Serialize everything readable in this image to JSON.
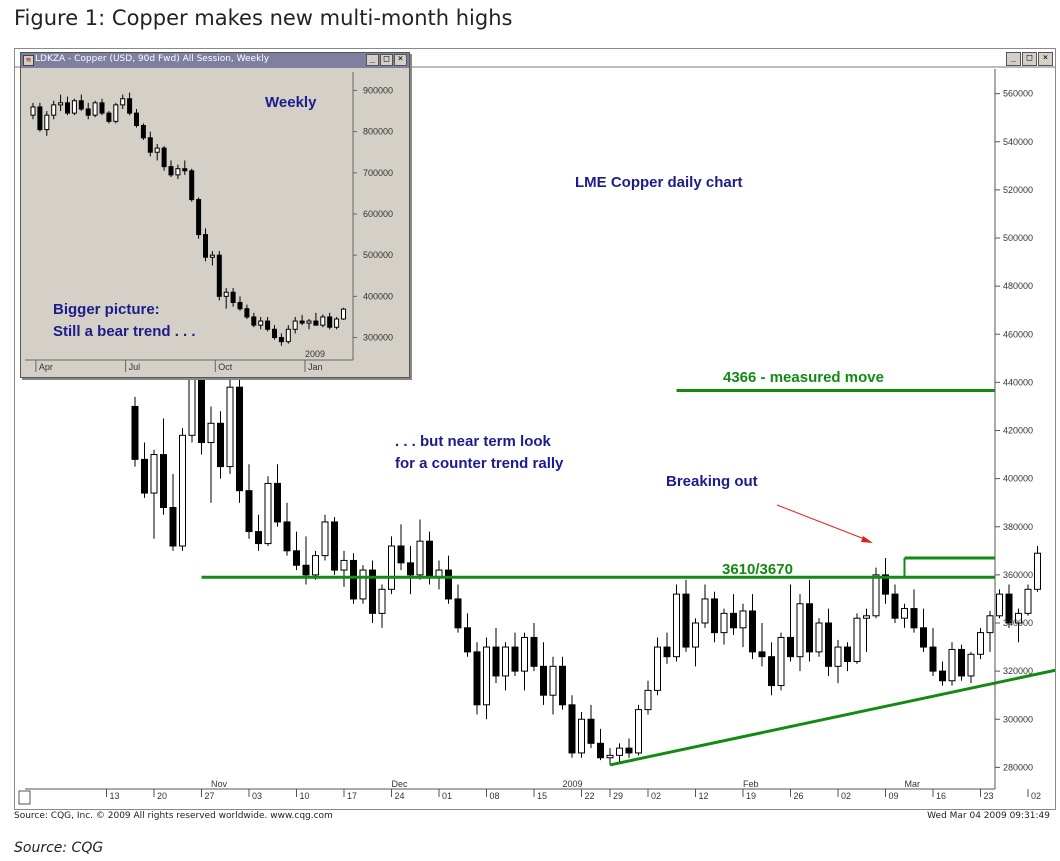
{
  "figure_title": "Figure 1: Copper makes new multi-month highs",
  "inset_window": {
    "title": "LDKZA - Copper (USD, 90d Fwd) All Session, Weekly",
    "buttons": [
      "_",
      "□",
      "×"
    ]
  },
  "main_window": {
    "buttons": [
      "_",
      "□",
      "×"
    ]
  },
  "annotations": {
    "main_title": "LME Copper daily chart",
    "near_term": [
      ". . . but near term look",
      "for a counter trend rally"
    ],
    "breaking_out": "Breaking out",
    "measured_move": "4366 - measured move",
    "resistance": "3610/3670",
    "weekly": "Weekly",
    "bigger_picture": [
      "Bigger picture:",
      "Still a bear trend . . ."
    ]
  },
  "colors": {
    "green": "#138a13",
    "annotation_blue": "#1c1c8a",
    "arrow_red": "#e02020",
    "candle_up": "#ffffff",
    "candle_down": "#000000"
  },
  "footer": {
    "left": "Source: CQG, Inc. © 2009 All rights reserved worldwide. www.cqg.com",
    "right": "Wed Mar 04 2009 09:31:49"
  },
  "source_note": "Source: CQG",
  "chart_data": [
    {
      "type": "candlestick",
      "name": "LME Copper daily chart",
      "y_ticks": [
        "560000",
        "540000",
        "520000",
        "500000",
        "480000",
        "460000",
        "440000",
        "420000",
        "400000",
        "380000",
        "360000",
        "340000",
        "320000",
        "300000",
        "280000"
      ],
      "ylim": [
        2760,
        5640
      ],
      "x_month_labels": [
        {
          "label": "Nov",
          "day_index": 8
        },
        {
          "label": "Dec",
          "day_index": 27
        },
        {
          "label": "2009",
          "day_index": 45
        },
        {
          "label": "Feb",
          "day_index": 64
        },
        {
          "label": "Mar",
          "day_index": 81
        }
      ],
      "x_day_labels": [
        {
          "label": "13",
          "day_index": -3
        },
        {
          "label": "20",
          "day_index": 2
        },
        {
          "label": "27",
          "day_index": 7
        },
        {
          "label": "03",
          "day_index": 12
        },
        {
          "label": "10",
          "day_index": 17
        },
        {
          "label": "17",
          "day_index": 22
        },
        {
          "label": "24",
          "day_index": 27
        },
        {
          "label": "01",
          "day_index": 32
        },
        {
          "label": "08",
          "day_index": 37
        },
        {
          "label": "15",
          "day_index": 42
        },
        {
          "label": "22",
          "day_index": 47
        },
        {
          "label": "29",
          "day_index": 50
        },
        {
          "label": "02",
          "day_index": 54
        },
        {
          "label": "12",
          "day_index": 59
        },
        {
          "label": "19",
          "day_index": 64
        },
        {
          "label": "26",
          "day_index": 69
        },
        {
          "label": "02",
          "day_index": 74
        },
        {
          "label": "09",
          "day_index": 79
        },
        {
          "label": "16",
          "day_index": 84
        },
        {
          "label": "23",
          "day_index": 89
        },
        {
          "label": "02",
          "day_index": 94
        }
      ],
      "ohlc": [
        [
          4300,
          4340,
          4050,
          4080
        ],
        [
          4080,
          4150,
          3920,
          3940
        ],
        [
          3940,
          4120,
          3750,
          4100
        ],
        [
          4100,
          4250,
          3850,
          3880
        ],
        [
          3880,
          4020,
          3700,
          3720
        ],
        [
          3720,
          4210,
          3700,
          4180
        ],
        [
          4180,
          4480,
          4150,
          4420
        ],
        [
          4420,
          4500,
          4100,
          4150
        ],
        [
          4150,
          4300,
          3900,
          4230
        ],
        [
          4230,
          4280,
          4000,
          4050
        ],
        [
          4050,
          4420,
          4020,
          4380
        ],
        [
          4380,
          4420,
          3900,
          3950
        ],
        [
          3950,
          4060,
          3750,
          3780
        ],
        [
          3780,
          3850,
          3700,
          3730
        ],
        [
          3730,
          4010,
          3720,
          3980
        ],
        [
          3980,
          4060,
          3800,
          3820
        ],
        [
          3820,
          3900,
          3680,
          3700
        ],
        [
          3700,
          3780,
          3620,
          3640
        ],
        [
          3640,
          3760,
          3560,
          3600
        ],
        [
          3600,
          3700,
          3580,
          3680
        ],
        [
          3680,
          3850,
          3660,
          3820
        ],
        [
          3820,
          3840,
          3600,
          3620
        ],
        [
          3620,
          3700,
          3550,
          3660
        ],
        [
          3660,
          3690,
          3480,
          3500
        ],
        [
          3500,
          3640,
          3480,
          3620
        ],
        [
          3620,
          3660,
          3400,
          3440
        ],
        [
          3440,
          3560,
          3380,
          3540
        ],
        [
          3540,
          3760,
          3520,
          3720
        ],
        [
          3720,
          3810,
          3620,
          3650
        ],
        [
          3650,
          3720,
          3520,
          3600
        ],
        [
          3600,
          3830,
          3580,
          3740
        ],
        [
          3740,
          3780,
          3560,
          3590
        ],
        [
          3590,
          3660,
          3540,
          3620
        ],
        [
          3620,
          3680,
          3480,
          3500
        ],
        [
          3500,
          3560,
          3360,
          3380
        ],
        [
          3380,
          3440,
          3260,
          3280
        ],
        [
          3280,
          3320,
          3020,
          3060
        ],
        [
          3060,
          3340,
          3000,
          3300
        ],
        [
          3300,
          3380,
          3150,
          3180
        ],
        [
          3180,
          3320,
          3120,
          3300
        ],
        [
          3300,
          3360,
          3180,
          3200
        ],
        [
          3200,
          3360,
          3120,
          3340
        ],
        [
          3340,
          3400,
          3200,
          3220
        ],
        [
          3220,
          3320,
          3060,
          3100
        ],
        [
          3100,
          3260,
          3020,
          3220
        ],
        [
          3220,
          3260,
          3040,
          3060
        ],
        [
          3060,
          3100,
          2840,
          2860
        ],
        [
          2860,
          3030,
          2840,
          3000
        ],
        [
          3000,
          3060,
          2880,
          2900
        ],
        [
          2900,
          2960,
          2830,
          2840
        ],
        [
          2840,
          2880,
          2810,
          2850
        ],
        [
          2850,
          2900,
          2820,
          2880
        ],
        [
          2880,
          2920,
          2840,
          2860
        ],
        [
          2860,
          3060,
          2850,
          3040
        ],
        [
          3040,
          3160,
          3020,
          3120
        ],
        [
          3120,
          3340,
          3100,
          3300
        ],
        [
          3300,
          3360,
          3230,
          3260
        ],
        [
          3260,
          3560,
          3240,
          3520
        ],
        [
          3520,
          3580,
          3280,
          3300
        ],
        [
          3300,
          3420,
          3220,
          3400
        ],
        [
          3400,
          3560,
          3380,
          3500
        ],
        [
          3500,
          3530,
          3320,
          3360
        ],
        [
          3360,
          3460,
          3310,
          3440
        ],
        [
          3440,
          3520,
          3350,
          3380
        ],
        [
          3380,
          3480,
          3300,
          3450
        ],
        [
          3450,
          3520,
          3250,
          3280
        ],
        [
          3280,
          3400,
          3220,
          3260
        ],
        [
          3260,
          3320,
          3100,
          3140
        ],
        [
          3140,
          3360,
          3120,
          3340
        ],
        [
          3340,
          3560,
          3240,
          3260
        ],
        [
          3260,
          3520,
          3200,
          3480
        ],
        [
          3480,
          3580,
          3240,
          3280
        ],
        [
          3280,
          3420,
          3260,
          3400
        ],
        [
          3400,
          3460,
          3180,
          3220
        ],
        [
          3220,
          3330,
          3150,
          3300
        ],
        [
          3300,
          3320,
          3200,
          3240
        ],
        [
          3240,
          3440,
          3230,
          3420
        ],
        [
          3420,
          3460,
          3280,
          3430
        ],
        [
          3430,
          3630,
          3420,
          3600
        ],
        [
          3600,
          3670,
          3480,
          3520
        ],
        [
          3520,
          3560,
          3400,
          3420
        ],
        [
          3420,
          3480,
          3380,
          3460
        ],
        [
          3460,
          3540,
          3360,
          3380
        ],
        [
          3380,
          3460,
          3280,
          3300
        ],
        [
          3300,
          3380,
          3180,
          3200
        ],
        [
          3200,
          3240,
          3140,
          3160
        ],
        [
          3160,
          3320,
          3140,
          3290
        ],
        [
          3290,
          3310,
          3160,
          3180
        ],
        [
          3180,
          3280,
          3150,
          3270
        ],
        [
          3270,
          3380,
          3250,
          3360
        ],
        [
          3360,
          3450,
          3280,
          3430
        ],
        [
          3430,
          3540,
          3420,
          3520
        ],
        [
          3520,
          3560,
          3380,
          3400
        ],
        [
          3400,
          3460,
          3320,
          3440
        ],
        [
          3440,
          3560,
          3430,
          3540
        ],
        [
          3540,
          3720,
          3530,
          3690
        ]
      ],
      "support_line": {
        "from": {
          "day_index": 50,
          "price": 2810
        },
        "to": {
          "day_index": 100,
          "price": 3230
        }
      },
      "resistance_lines": [
        {
          "price": 3590,
          "from_day_index": 7
        },
        {
          "price": 3670,
          "from_day_index": 81
        }
      ],
      "measured_move_target": {
        "price": 4366,
        "from_day_index": 57
      }
    },
    {
      "type": "candlestick",
      "name": "Weekly",
      "y_ticks": [
        "900000",
        "800000",
        "700000",
        "600000",
        "500000",
        "400000",
        "300000"
      ],
      "ylim": [
        2600,
        9400
      ],
      "x_labels": [
        {
          "label": "Apr",
          "week_index": 1
        },
        {
          "label": "Jul",
          "week_index": 14
        },
        {
          "label": "Oct",
          "week_index": 27
        },
        {
          "label": "Jan",
          "week_index": 40
        }
      ],
      "year_label": {
        "label": "2009",
        "week_index": 40
      },
      "ohlc": [
        [
          8400,
          8700,
          8300,
          8600
        ],
        [
          8600,
          8700,
          8000,
          8050
        ],
        [
          8050,
          8500,
          7900,
          8400
        ],
        [
          8400,
          8750,
          8300,
          8650
        ],
        [
          8650,
          8900,
          8500,
          8700
        ],
        [
          8700,
          8850,
          8400,
          8450
        ],
        [
          8450,
          8800,
          8400,
          8750
        ],
        [
          8750,
          8900,
          8500,
          8550
        ],
        [
          8550,
          8700,
          8300,
          8400
        ],
        [
          8400,
          8750,
          8350,
          8700
        ],
        [
          8700,
          8800,
          8400,
          8450
        ],
        [
          8450,
          8500,
          8200,
          8250
        ],
        [
          8250,
          8700,
          8200,
          8650
        ],
        [
          8650,
          8900,
          8550,
          8800
        ],
        [
          8800,
          8950,
          8400,
          8450
        ],
        [
          8450,
          8550,
          8100,
          8150
        ],
        [
          8150,
          8200,
          7800,
          7850
        ],
        [
          7850,
          8000,
          7400,
          7500
        ],
        [
          7500,
          7700,
          7300,
          7600
        ],
        [
          7600,
          7650,
          7050,
          7150
        ],
        [
          7150,
          7300,
          6900,
          6950
        ],
        [
          6950,
          7200,
          6850,
          7100
        ],
        [
          7100,
          7300,
          6950,
          7050
        ],
        [
          7050,
          7100,
          6300,
          6350
        ],
        [
          6350,
          6400,
          5400,
          5500
        ],
        [
          5500,
          5650,
          4850,
          4950
        ],
        [
          4950,
          5100,
          4750,
          5000
        ],
        [
          5000,
          5100,
          3900,
          4000
        ],
        [
          4000,
          4200,
          3700,
          4100
        ],
        [
          4100,
          4200,
          3750,
          3850
        ],
        [
          3850,
          4000,
          3650,
          3700
        ],
        [
          3700,
          3800,
          3450,
          3500
        ],
        [
          3500,
          3600,
          3250,
          3300
        ],
        [
          3300,
          3500,
          3200,
          3400
        ],
        [
          3400,
          3500,
          3150,
          3200
        ],
        [
          3200,
          3300,
          2950,
          3000
        ],
        [
          3000,
          3100,
          2800,
          2900
        ],
        [
          2900,
          3300,
          2850,
          3200
        ],
        [
          3200,
          3500,
          3100,
          3400
        ],
        [
          3400,
          3550,
          3300,
          3350
        ],
        [
          3350,
          3450,
          3200,
          3400
        ],
        [
          3400,
          3600,
          3300,
          3300
        ],
        [
          3300,
          3560,
          3250,
          3500
        ],
        [
          3500,
          3600,
          3200,
          3250
        ],
        [
          3250,
          3500,
          3200,
          3450
        ],
        [
          3450,
          3720,
          3430,
          3690
        ]
      ]
    }
  ]
}
